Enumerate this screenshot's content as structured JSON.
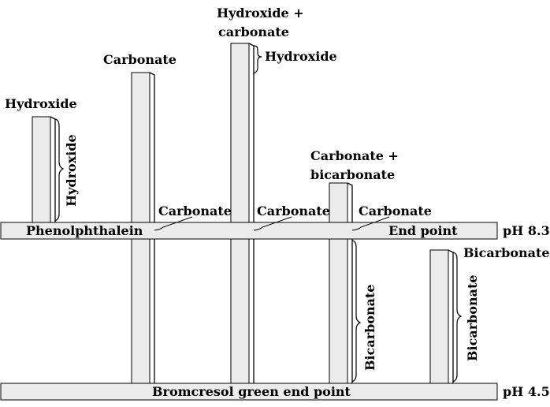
{
  "diagram": {
    "colors": {
      "bar_fill": "#ececec",
      "line": "#000000",
      "background": "#ffffff"
    },
    "bands": {
      "phenolphthalein": {
        "left_label": "Phenolphthalein",
        "right_label": "End point",
        "ph": "pH 8.3"
      },
      "bromcresol": {
        "label": "Bromcresol green end point",
        "ph": "pH 4.5"
      }
    },
    "columns": [
      {
        "id": "hydroxide",
        "title": [
          "Hydroxide"
        ],
        "upper_brace": "Hydroxide"
      },
      {
        "id": "carbonate",
        "title": [
          "Carbonate"
        ],
        "mid_label": "Carbonate"
      },
      {
        "id": "hydroxide-carbonate",
        "title": [
          "Hydroxide +",
          "carbonate"
        ],
        "upper_brace": "Hydroxide",
        "mid_label": "Carbonate"
      },
      {
        "id": "carbonate-bicarbonate",
        "title": [
          "Carbonate +",
          "bicarbonate"
        ],
        "mid_label": "Carbonate",
        "lower_brace": "Bicarbonate"
      },
      {
        "id": "bicarbonate",
        "title": [],
        "top_label": "Bicarbonate",
        "lower_brace": "Bicarbonate"
      }
    ]
  }
}
